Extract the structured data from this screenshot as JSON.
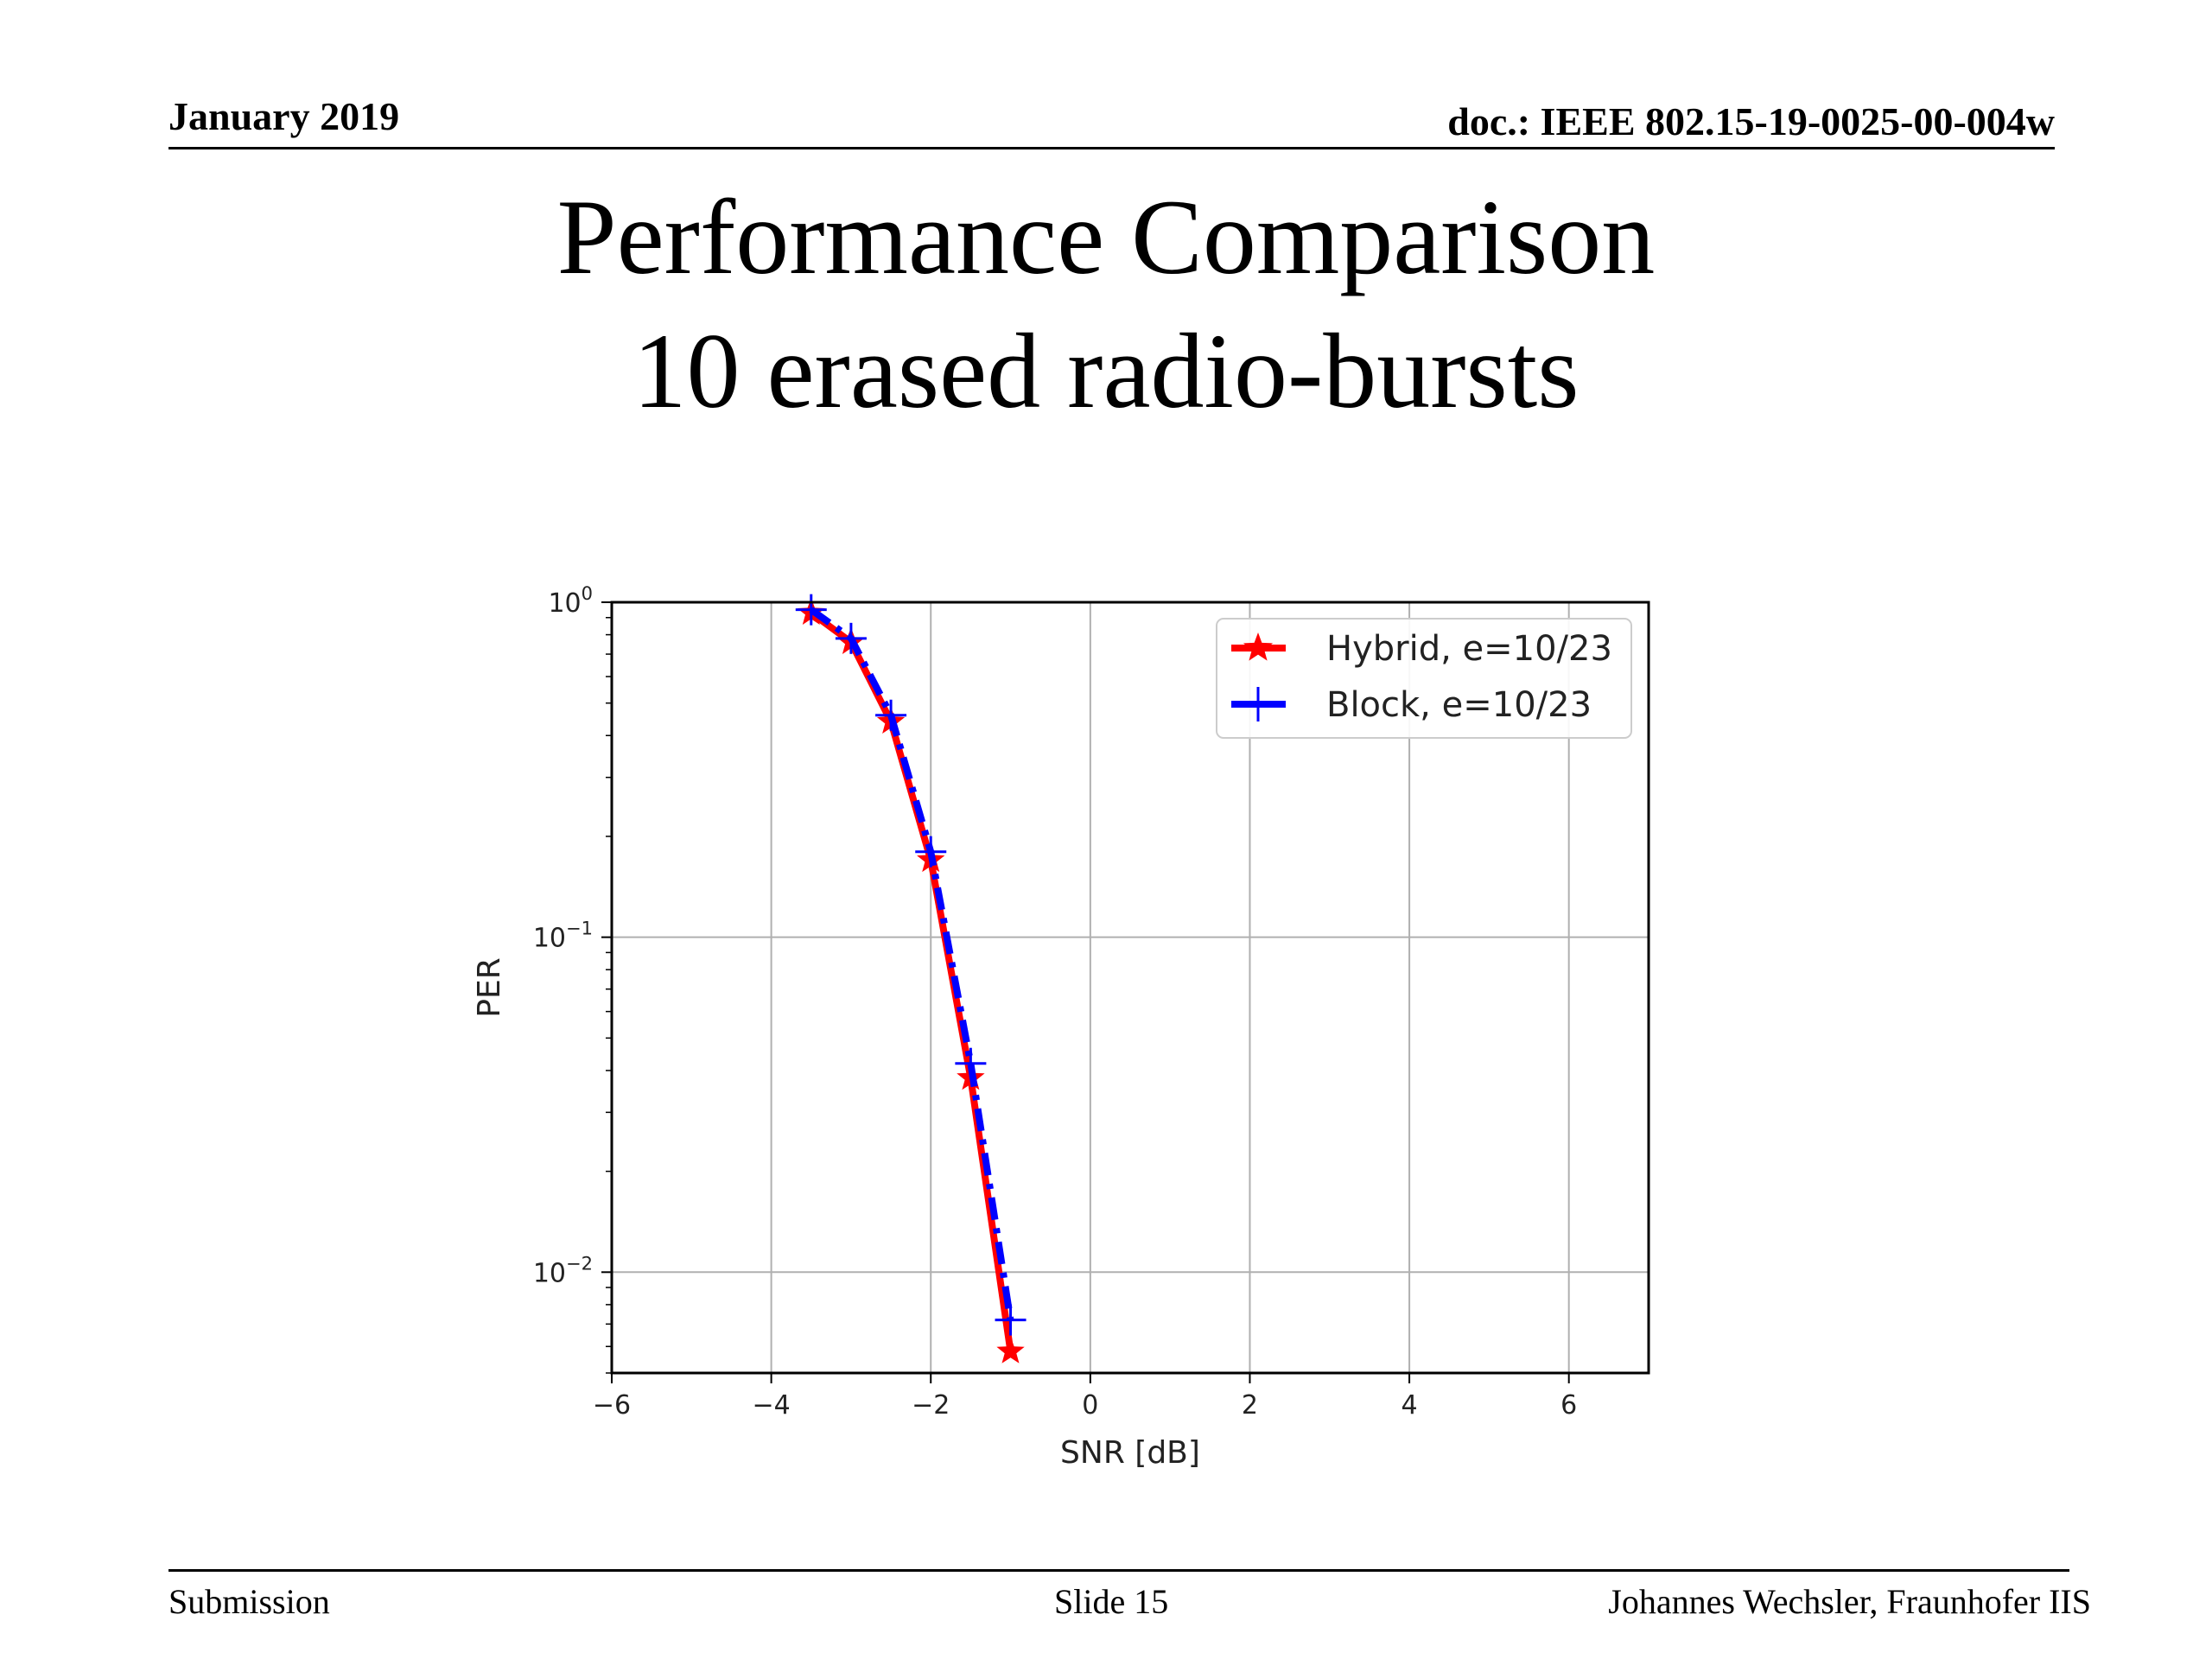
{
  "header": {
    "date": "January 2019",
    "doc_id": "doc.: IEEE 802.15-19-0025-00-004w"
  },
  "slide": {
    "title_line1": "Performance Comparison",
    "title_line2": "10 erased radio-bursts"
  },
  "footer": {
    "left": "Submission",
    "center": "Slide 15",
    "right": "Johannes Wechsler, Fraunhofer IIS"
  },
  "chart_data": {
    "type": "line",
    "xlabel": "SNR [dB]",
    "ylabel": "PER",
    "xlim": [
      -6,
      7
    ],
    "ylim": [
      0.005,
      1
    ],
    "yscale": "log",
    "xticks": [
      -6,
      -4,
      -2,
      0,
      2,
      4,
      6
    ],
    "x_tick_labels": [
      "−6",
      "−4",
      "−2",
      "0",
      "2",
      "4",
      "6"
    ],
    "yticks": [
      1,
      0.1,
      0.01
    ],
    "y_tick_labels": [
      {
        "base": "10",
        "exp": "0"
      },
      {
        "base": "10",
        "exp": "−1"
      },
      {
        "base": "10",
        "exp": "−2"
      }
    ],
    "grid": true,
    "legend_position": "top-right",
    "series": [
      {
        "name": "Hybrid, e=10/23",
        "color": "#ff0000",
        "marker": "star",
        "line_style": "solid",
        "x": [
          -3.5,
          -3.0,
          -2.5,
          -2.0,
          -1.5,
          -1.0
        ],
        "y": [
          0.93,
          0.76,
          0.44,
          0.17,
          0.038,
          0.0058
        ]
      },
      {
        "name": "Block, e=10/23",
        "color": "#0000ff",
        "marker": "plus",
        "line_style": "dashdot",
        "x": [
          -3.5,
          -3.0,
          -2.5,
          -2.0,
          -1.5,
          -1.0
        ],
        "y": [
          0.95,
          0.78,
          0.46,
          0.18,
          0.042,
          0.0072
        ]
      }
    ]
  }
}
